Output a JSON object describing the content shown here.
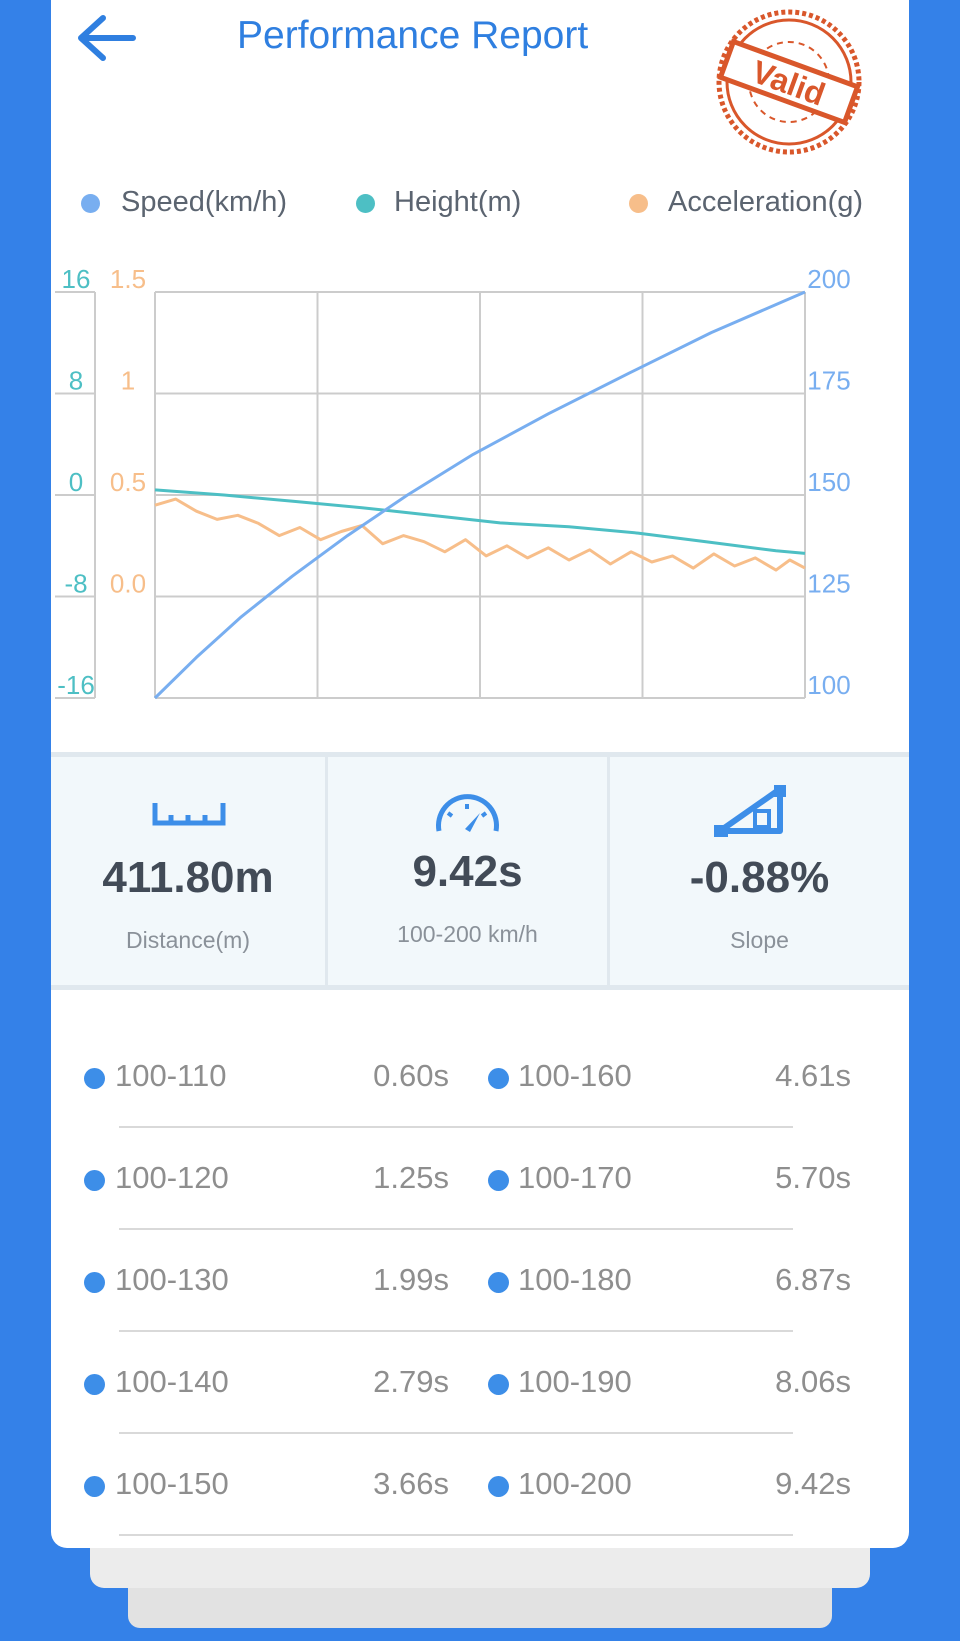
{
  "header": {
    "title": "Performance Report",
    "stamp_text": "Valid"
  },
  "colors": {
    "speed": "#78aef0",
    "height": "#4dbfc4",
    "acceleration": "#f7be8a",
    "accent": "#2f7fe0",
    "stamp": "#d9572b"
  },
  "legend": [
    {
      "label": "Speed(km/h)",
      "color": "#78aef0"
    },
    {
      "label": "Height(m)",
      "color": "#4dbfc4"
    },
    {
      "label": "Acceleration(g)",
      "color": "#f7be8a"
    }
  ],
  "chart_data": {
    "type": "line",
    "grid": true,
    "legend_position": "top",
    "axes": {
      "height_ticks": [
        "16",
        "8",
        "0",
        "-8",
        "-16"
      ],
      "acceleration_ticks": [
        "1.5",
        "1",
        "0.5",
        "0.0"
      ],
      "speed_ticks": [
        "200",
        "175",
        "150",
        "125",
        "100"
      ],
      "height_range": [
        -16,
        16
      ],
      "acceleration_range": [
        -0.5,
        1.5
      ],
      "speed_range": [
        100,
        200
      ],
      "x_range": [
        0,
        9.42
      ]
    },
    "series": [
      {
        "name": "Speed(km/h)",
        "axis": "speed",
        "x": [
          0,
          0.6,
          1.25,
          1.99,
          2.79,
          3.66,
          4.61,
          5.7,
          6.87,
          8.06,
          9.42
        ],
        "y": [
          100,
          110,
          120,
          130,
          140,
          150,
          160,
          170,
          180,
          190,
          200
        ]
      },
      {
        "name": "Height(m)",
        "axis": "height",
        "x": [
          0,
          1,
          2,
          3,
          4,
          5,
          6,
          7,
          8,
          9,
          9.42
        ],
        "y": [
          0.4,
          0.0,
          -0.5,
          -1.0,
          -1.6,
          -2.2,
          -2.5,
          -3.0,
          -3.7,
          -4.4,
          -4.6
        ]
      },
      {
        "name": "Acceleration(g)",
        "axis": "acceleration",
        "x": [
          0,
          0.3,
          0.6,
          0.9,
          1.2,
          1.5,
          1.8,
          2.1,
          2.4,
          2.7,
          3.0,
          3.3,
          3.6,
          3.9,
          4.2,
          4.5,
          4.8,
          5.1,
          5.4,
          5.7,
          6.0,
          6.3,
          6.6,
          6.9,
          7.2,
          7.5,
          7.8,
          8.1,
          8.4,
          8.7,
          9.0,
          9.2,
          9.42
        ],
        "y": [
          0.45,
          0.48,
          0.42,
          0.38,
          0.4,
          0.36,
          0.3,
          0.34,
          0.28,
          0.32,
          0.35,
          0.26,
          0.3,
          0.27,
          0.22,
          0.28,
          0.2,
          0.25,
          0.19,
          0.24,
          0.18,
          0.23,
          0.16,
          0.22,
          0.17,
          0.2,
          0.14,
          0.21,
          0.15,
          0.19,
          0.13,
          0.18,
          0.14
        ]
      }
    ]
  },
  "stats": [
    {
      "icon": "ruler-icon",
      "value": "411.80m",
      "label": "Distance(m)"
    },
    {
      "icon": "speedometer-icon",
      "value": "9.42s",
      "label": "100-200 km/h"
    },
    {
      "icon": "slope-icon",
      "value": "-0.88%",
      "label": "Slope"
    }
  ],
  "splits": [
    [
      {
        "range": "100-110",
        "time": "0.60s"
      },
      {
        "range": "100-160",
        "time": "4.61s"
      }
    ],
    [
      {
        "range": "100-120",
        "time": "1.25s"
      },
      {
        "range": "100-170",
        "time": "5.70s"
      }
    ],
    [
      {
        "range": "100-130",
        "time": "1.99s"
      },
      {
        "range": "100-180",
        "time": "6.87s"
      }
    ],
    [
      {
        "range": "100-140",
        "time": "2.79s"
      },
      {
        "range": "100-190",
        "time": "8.06s"
      }
    ],
    [
      {
        "range": "100-150",
        "time": "3.66s"
      },
      {
        "range": "100-200",
        "time": "9.42s"
      }
    ]
  ]
}
